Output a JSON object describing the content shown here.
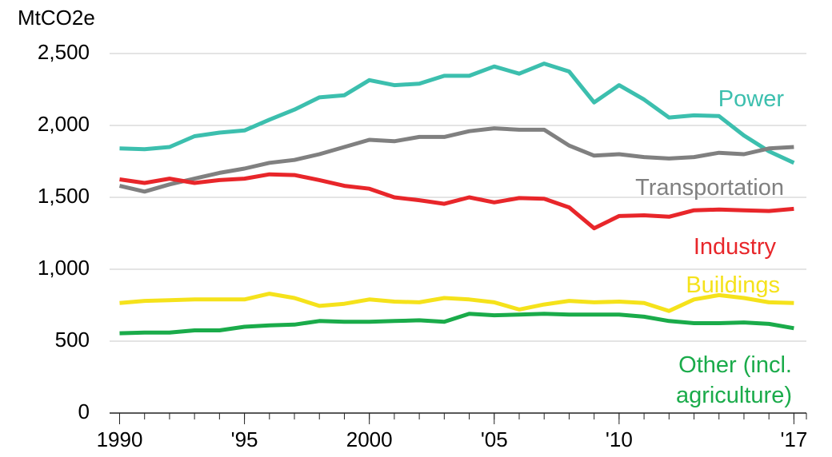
{
  "chart_data": {
    "type": "line",
    "y_label": "MtCO2e",
    "x": [
      1990,
      1991,
      1992,
      1993,
      1994,
      1995,
      1996,
      1997,
      1998,
      1999,
      2000,
      2001,
      2002,
      2003,
      2004,
      2005,
      2006,
      2007,
      2008,
      2009,
      2010,
      2011,
      2012,
      2013,
      2014,
      2015,
      2016,
      2017
    ],
    "xlim": [
      1989.6,
      2017.5
    ],
    "xticks": [
      1990,
      {
        "value": 1995,
        "label": "'95"
      },
      2000,
      {
        "value": 2005,
        "label": "'05"
      },
      {
        "value": 2010,
        "label": "'10"
      },
      {
        "value": 2017,
        "label": "'17"
      }
    ],
    "ylim": [
      0,
      2500
    ],
    "yticks": [
      0,
      500,
      {
        "value": 1000,
        "label": "1,000"
      },
      {
        "value": 1500,
        "label": "1,500"
      },
      {
        "value": 2000,
        "label": "2,000"
      },
      {
        "value": 2500,
        "label": "2,500"
      }
    ],
    "grid": true,
    "series": [
      {
        "name": "Power",
        "color": "#3cbfae",
        "values": [
          1840,
          1835,
          1850,
          1925,
          1950,
          1965,
          2040,
          2110,
          2195,
          2210,
          2315,
          2280,
          2290,
          2345,
          2345,
          2410,
          2360,
          2430,
          2375,
          2160,
          2280,
          2180,
          2055,
          2070,
          2065,
          1930,
          1820,
          1740
        ]
      },
      {
        "name": "Transportation",
        "color": "#808080",
        "values": [
          1580,
          1540,
          1590,
          1630,
          1670,
          1700,
          1740,
          1760,
          1800,
          1850,
          1900,
          1890,
          1920,
          1920,
          1960,
          1980,
          1970,
          1970,
          1860,
          1790,
          1800,
          1780,
          1770,
          1780,
          1810,
          1800,
          1840,
          1850
        ]
      },
      {
        "name": "Industry",
        "color": "#e8262a",
        "values": [
          1625,
          1600,
          1630,
          1600,
          1620,
          1630,
          1660,
          1655,
          1620,
          1580,
          1560,
          1500,
          1480,
          1455,
          1500,
          1465,
          1495,
          1490,
          1430,
          1285,
          1370,
          1375,
          1365,
          1410,
          1415,
          1410,
          1405,
          1420
        ]
      },
      {
        "name": "Buildings",
        "color": "#f5e21b",
        "values": [
          765,
          780,
          785,
          790,
          790,
          790,
          830,
          800,
          745,
          760,
          790,
          775,
          770,
          800,
          790,
          770,
          720,
          755,
          780,
          770,
          775,
          765,
          710,
          790,
          820,
          800,
          770,
          765
        ]
      },
      {
        "name": "Other (incl. agriculture)",
        "color": "#1aab4a",
        "values": [
          555,
          560,
          560,
          575,
          575,
          600,
          610,
          615,
          640,
          635,
          635,
          640,
          645,
          635,
          690,
          680,
          685,
          690,
          685,
          685,
          685,
          670,
          640,
          625,
          625,
          630,
          620,
          590
        ]
      }
    ]
  }
}
